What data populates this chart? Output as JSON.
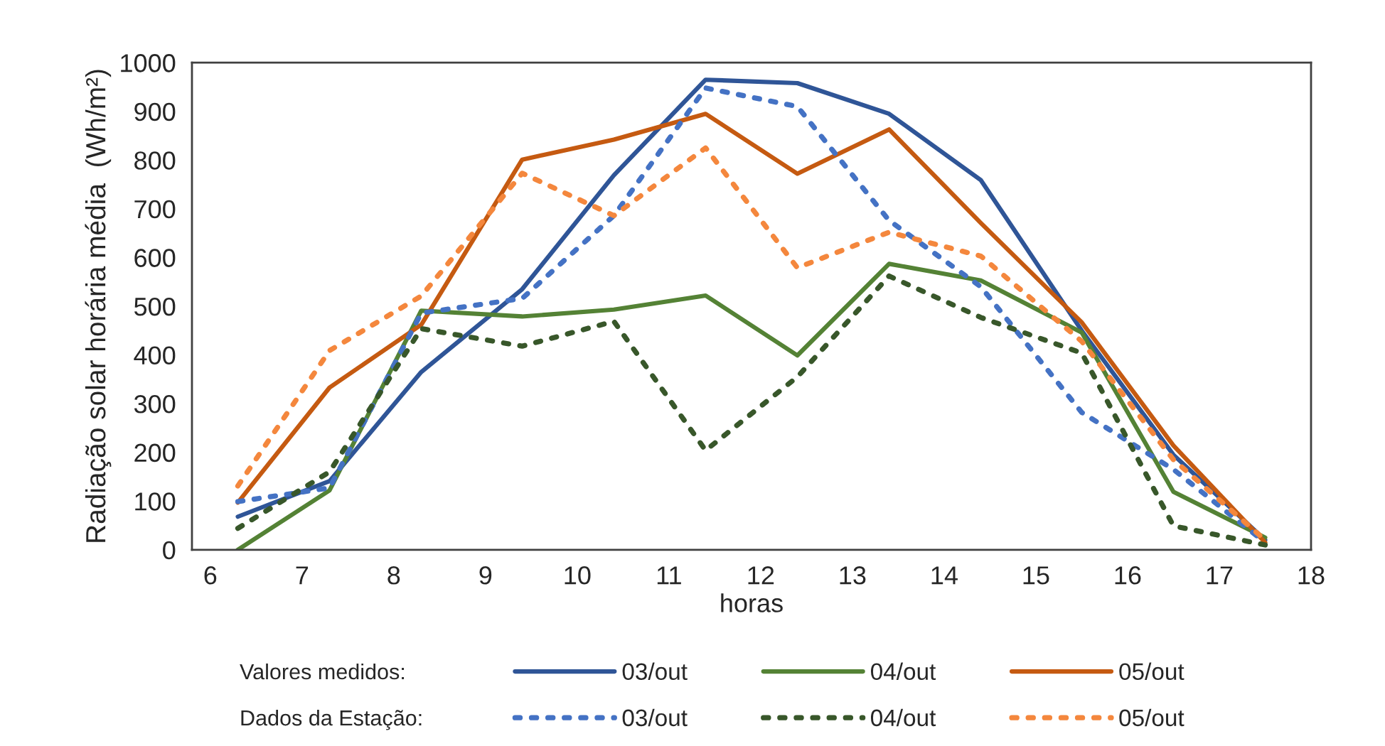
{
  "chart_data": {
    "type": "line",
    "xlabel": "horas",
    "ylabel": "Radiação solar horária média  (Wh/m²)",
    "x": [
      6.3,
      7.3,
      8.3,
      9.4,
      10.4,
      11.4,
      12.4,
      13.4,
      14.4,
      15.5,
      16.5,
      17.5
    ],
    "xlim": [
      5.8,
      18
    ],
    "xticks": [
      6,
      7,
      8,
      9,
      10,
      11,
      12,
      13,
      14,
      15,
      16,
      17,
      18
    ],
    "ylim": [
      0,
      1000
    ],
    "yticks": [
      0,
      100,
      200,
      300,
      400,
      500,
      600,
      700,
      800,
      900,
      1000
    ],
    "grid": false,
    "legend": "bottom",
    "marker": "none",
    "annotations": [
      "Valores medidos:",
      "Dados da Estação:"
    ],
    "series": [
      {
        "name": "03/out",
        "color": "#2f5597",
        "line_style": "solid",
        "values": [
          68,
          141,
          365,
          535,
          769,
          965,
          958,
          895,
          759,
          450,
          195,
          20
        ]
      },
      {
        "name": "04/out",
        "color": "#548235",
        "line_style": "solid",
        "values": [
          0,
          122,
          491,
          479,
          493,
          522,
          399,
          587,
          553,
          446,
          119,
          25
        ]
      },
      {
        "name": "05/out",
        "color": "#c55a11",
        "line_style": "solid",
        "values": [
          97,
          333,
          462,
          801,
          842,
          895,
          772,
          863,
          671,
          467,
          214,
          15
        ]
      },
      {
        "name": "03/out",
        "color": "#4472c4",
        "line_style": "dotted",
        "values": [
          99,
          127,
          486,
          516,
          686,
          948,
          910,
          676,
          540,
          282,
          165,
          15
        ]
      },
      {
        "name": "04/out",
        "color": "#38572a",
        "line_style": "dotted",
        "values": [
          44,
          160,
          454,
          418,
          469,
          204,
          355,
          562,
          477,
          404,
          49,
          10
        ]
      },
      {
        "name": "05/out",
        "color": "#f4873d",
        "line_style": "dotted",
        "values": [
          131,
          409,
          521,
          773,
          686,
          825,
          579,
          652,
          603,
          428,
          185,
          20
        ]
      }
    ]
  }
}
